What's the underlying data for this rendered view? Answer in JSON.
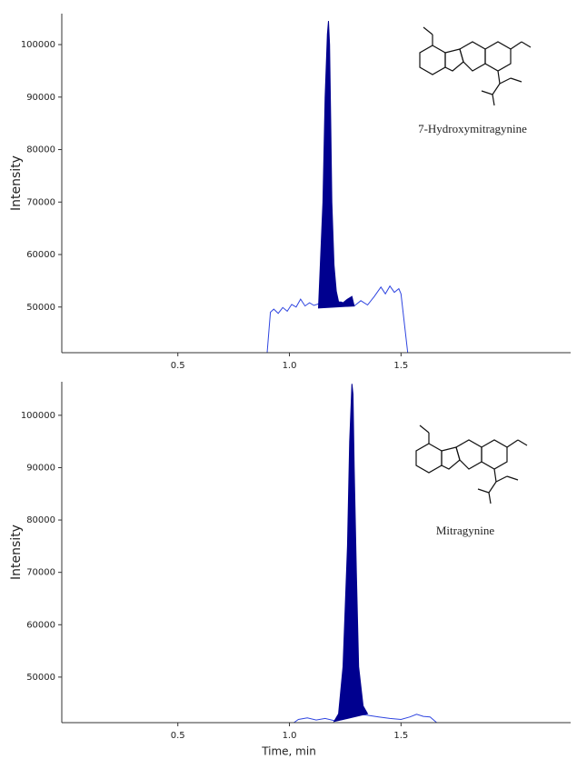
{
  "chart_data": [
    {
      "type": "line",
      "y_label": "Intensity",
      "annotation": "7-Hydroxymitragynine",
      "xlim": [
        -0.02,
        2.26
      ],
      "xticks": [
        0.5,
        {
          "value": 1,
          "label": "1.0"
        },
        1.5
      ],
      "ylim": [
        41300,
        105900
      ],
      "yticks": [
        50000,
        60000,
        70000,
        80000,
        90000,
        100000
      ],
      "series": [
        {
          "color": "#2f45e0",
          "fill": false,
          "x": [
            0.9,
            0.915,
            0.93,
            0.95,
            0.97,
            0.99,
            1.01,
            1.03,
            1.05,
            1.07,
            1.09,
            1.11,
            1.13,
            1.15,
            1.17,
            1.2,
            1.23,
            1.26,
            1.29,
            1.32,
            1.35,
            1.38,
            1.41,
            1.43,
            1.45,
            1.47,
            1.49,
            1.5,
            1.53
          ],
          "values": [
            41300,
            49000,
            49600,
            48800,
            49900,
            49200,
            50500,
            50000,
            51500,
            50200,
            50800,
            50300,
            50600,
            50400,
            50900,
            50300,
            51000,
            50500,
            50200,
            51200,
            50400,
            52000,
            53800,
            52500,
            54000,
            52800,
            53500,
            52500,
            41300
          ]
        },
        {
          "color": "#00008f",
          "fill": true,
          "x": [
            1.13,
            1.15,
            1.16,
            1.17,
            1.175,
            1.18,
            1.185,
            1.19,
            1.2,
            1.21,
            1.22,
            1.24,
            1.26,
            1.28,
            1.29
          ],
          "values": [
            49800,
            70000,
            90000,
            102000,
            104500,
            100000,
            85000,
            70000,
            58000,
            53000,
            51000,
            50800,
            51500,
            52000,
            50200
          ]
        }
      ]
    },
    {
      "type": "line",
      "y_label": "Intensity",
      "x_label": "Time, min",
      "annotation": "Mitragynine",
      "xlim": [
        -0.02,
        2.26
      ],
      "xticks": [
        0.5,
        {
          "value": 1,
          "label": "1.0"
        },
        1.5
      ],
      "ylim": [
        41300,
        106400
      ],
      "yticks": [
        50000,
        60000,
        70000,
        80000,
        90000,
        100000
      ],
      "series": [
        {
          "color": "#2f45e0",
          "fill": false,
          "x": [
            1.02,
            1.04,
            1.08,
            1.12,
            1.16,
            1.2,
            1.24,
            1.3,
            1.35,
            1.4,
            1.45,
            1.5,
            1.54,
            1.57,
            1.6,
            1.63,
            1.66
          ],
          "values": [
            41300,
            41900,
            42200,
            41800,
            42100,
            41700,
            41900,
            43000,
            42700,
            42400,
            42100,
            41900,
            42400,
            42900,
            42500,
            42400,
            41300
          ]
        },
        {
          "color": "#00008f",
          "fill": true,
          "x": [
            1.2,
            1.22,
            1.24,
            1.26,
            1.27,
            1.28,
            1.285,
            1.29,
            1.3,
            1.31,
            1.33,
            1.35
          ],
          "values": [
            41500,
            43000,
            52000,
            75000,
            95000,
            106000,
            104000,
            90000,
            70000,
            52000,
            44500,
            43000
          ]
        }
      ]
    }
  ]
}
